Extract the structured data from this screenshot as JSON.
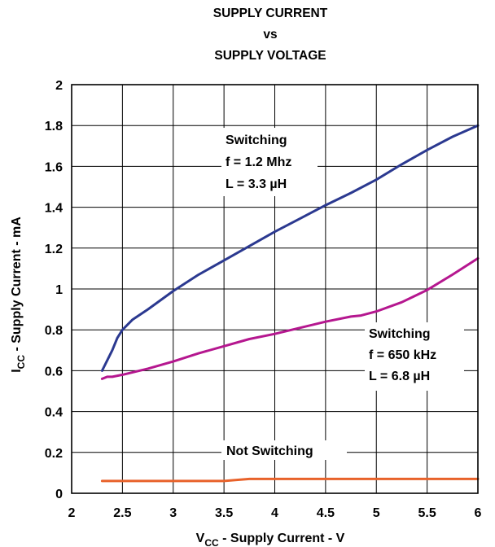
{
  "chart_data": {
    "type": "line",
    "title_lines": [
      "SUPPLY CURRENT",
      "vs",
      "SUPPLY VOLTAGE"
    ],
    "xlabel": {
      "main": "V",
      "sub": "CC",
      "rest": " - Supply Current - V"
    },
    "ylabel": {
      "main": "I",
      "sub": "CC",
      "rest": " - Supply Current - mA"
    },
    "xlim": [
      2,
      6
    ],
    "ylim": [
      0,
      2
    ],
    "x_ticks": [
      "2",
      "2.5",
      "3",
      "3.5",
      "4",
      "4.5",
      "5",
      "5.5",
      "6"
    ],
    "y_ticks": [
      "0",
      "0.2",
      "0.4",
      "0.6",
      "0.8",
      "1",
      "1.2",
      "1.4",
      "1.6",
      "1.8",
      "2"
    ],
    "grid": true,
    "series": [
      {
        "color": "#2b3990",
        "x": [
          2.3,
          2.4,
          2.45,
          2.5,
          2.6,
          2.75,
          3.0,
          3.25,
          3.5,
          3.75,
          4.0,
          4.25,
          4.5,
          4.75,
          5.0,
          5.25,
          5.5,
          5.75,
          6.0
        ],
        "y": [
          0.6,
          0.7,
          0.76,
          0.8,
          0.85,
          0.9,
          0.99,
          1.07,
          1.14,
          1.21,
          1.28,
          1.345,
          1.41,
          1.47,
          1.535,
          1.61,
          1.68,
          1.745,
          1.8
        ]
      },
      {
        "color": "#b5178f",
        "x": [
          2.3,
          2.35,
          2.4,
          2.5,
          2.75,
          3.0,
          3.25,
          3.5,
          3.75,
          4.0,
          4.25,
          4.5,
          4.75,
          4.85,
          5.0,
          5.25,
          5.5,
          5.75,
          6.0
        ],
        "y": [
          0.56,
          0.57,
          0.57,
          0.58,
          0.61,
          0.645,
          0.685,
          0.72,
          0.755,
          0.78,
          0.81,
          0.84,
          0.865,
          0.87,
          0.89,
          0.935,
          0.995,
          1.07,
          1.15
        ]
      },
      {
        "color": "#e8622a",
        "x": [
          2.3,
          3.0,
          3.5,
          3.75,
          4.0,
          4.5,
          5.0,
          5.5,
          6.0
        ],
        "y": [
          0.06,
          0.06,
          0.06,
          0.07,
          0.07,
          0.07,
          0.07,
          0.07,
          0.07
        ]
      }
    ],
    "annotations": [
      {
        "lines": [
          "Switching",
          "f = 1.2 Mhz",
          "L = 3.3 µH"
        ]
      },
      {
        "lines": [
          "Switching",
          "f = 650 kHz",
          "L = 6.8 µH"
        ]
      },
      {
        "lines": [
          "Not Switching"
        ]
      }
    ]
  }
}
